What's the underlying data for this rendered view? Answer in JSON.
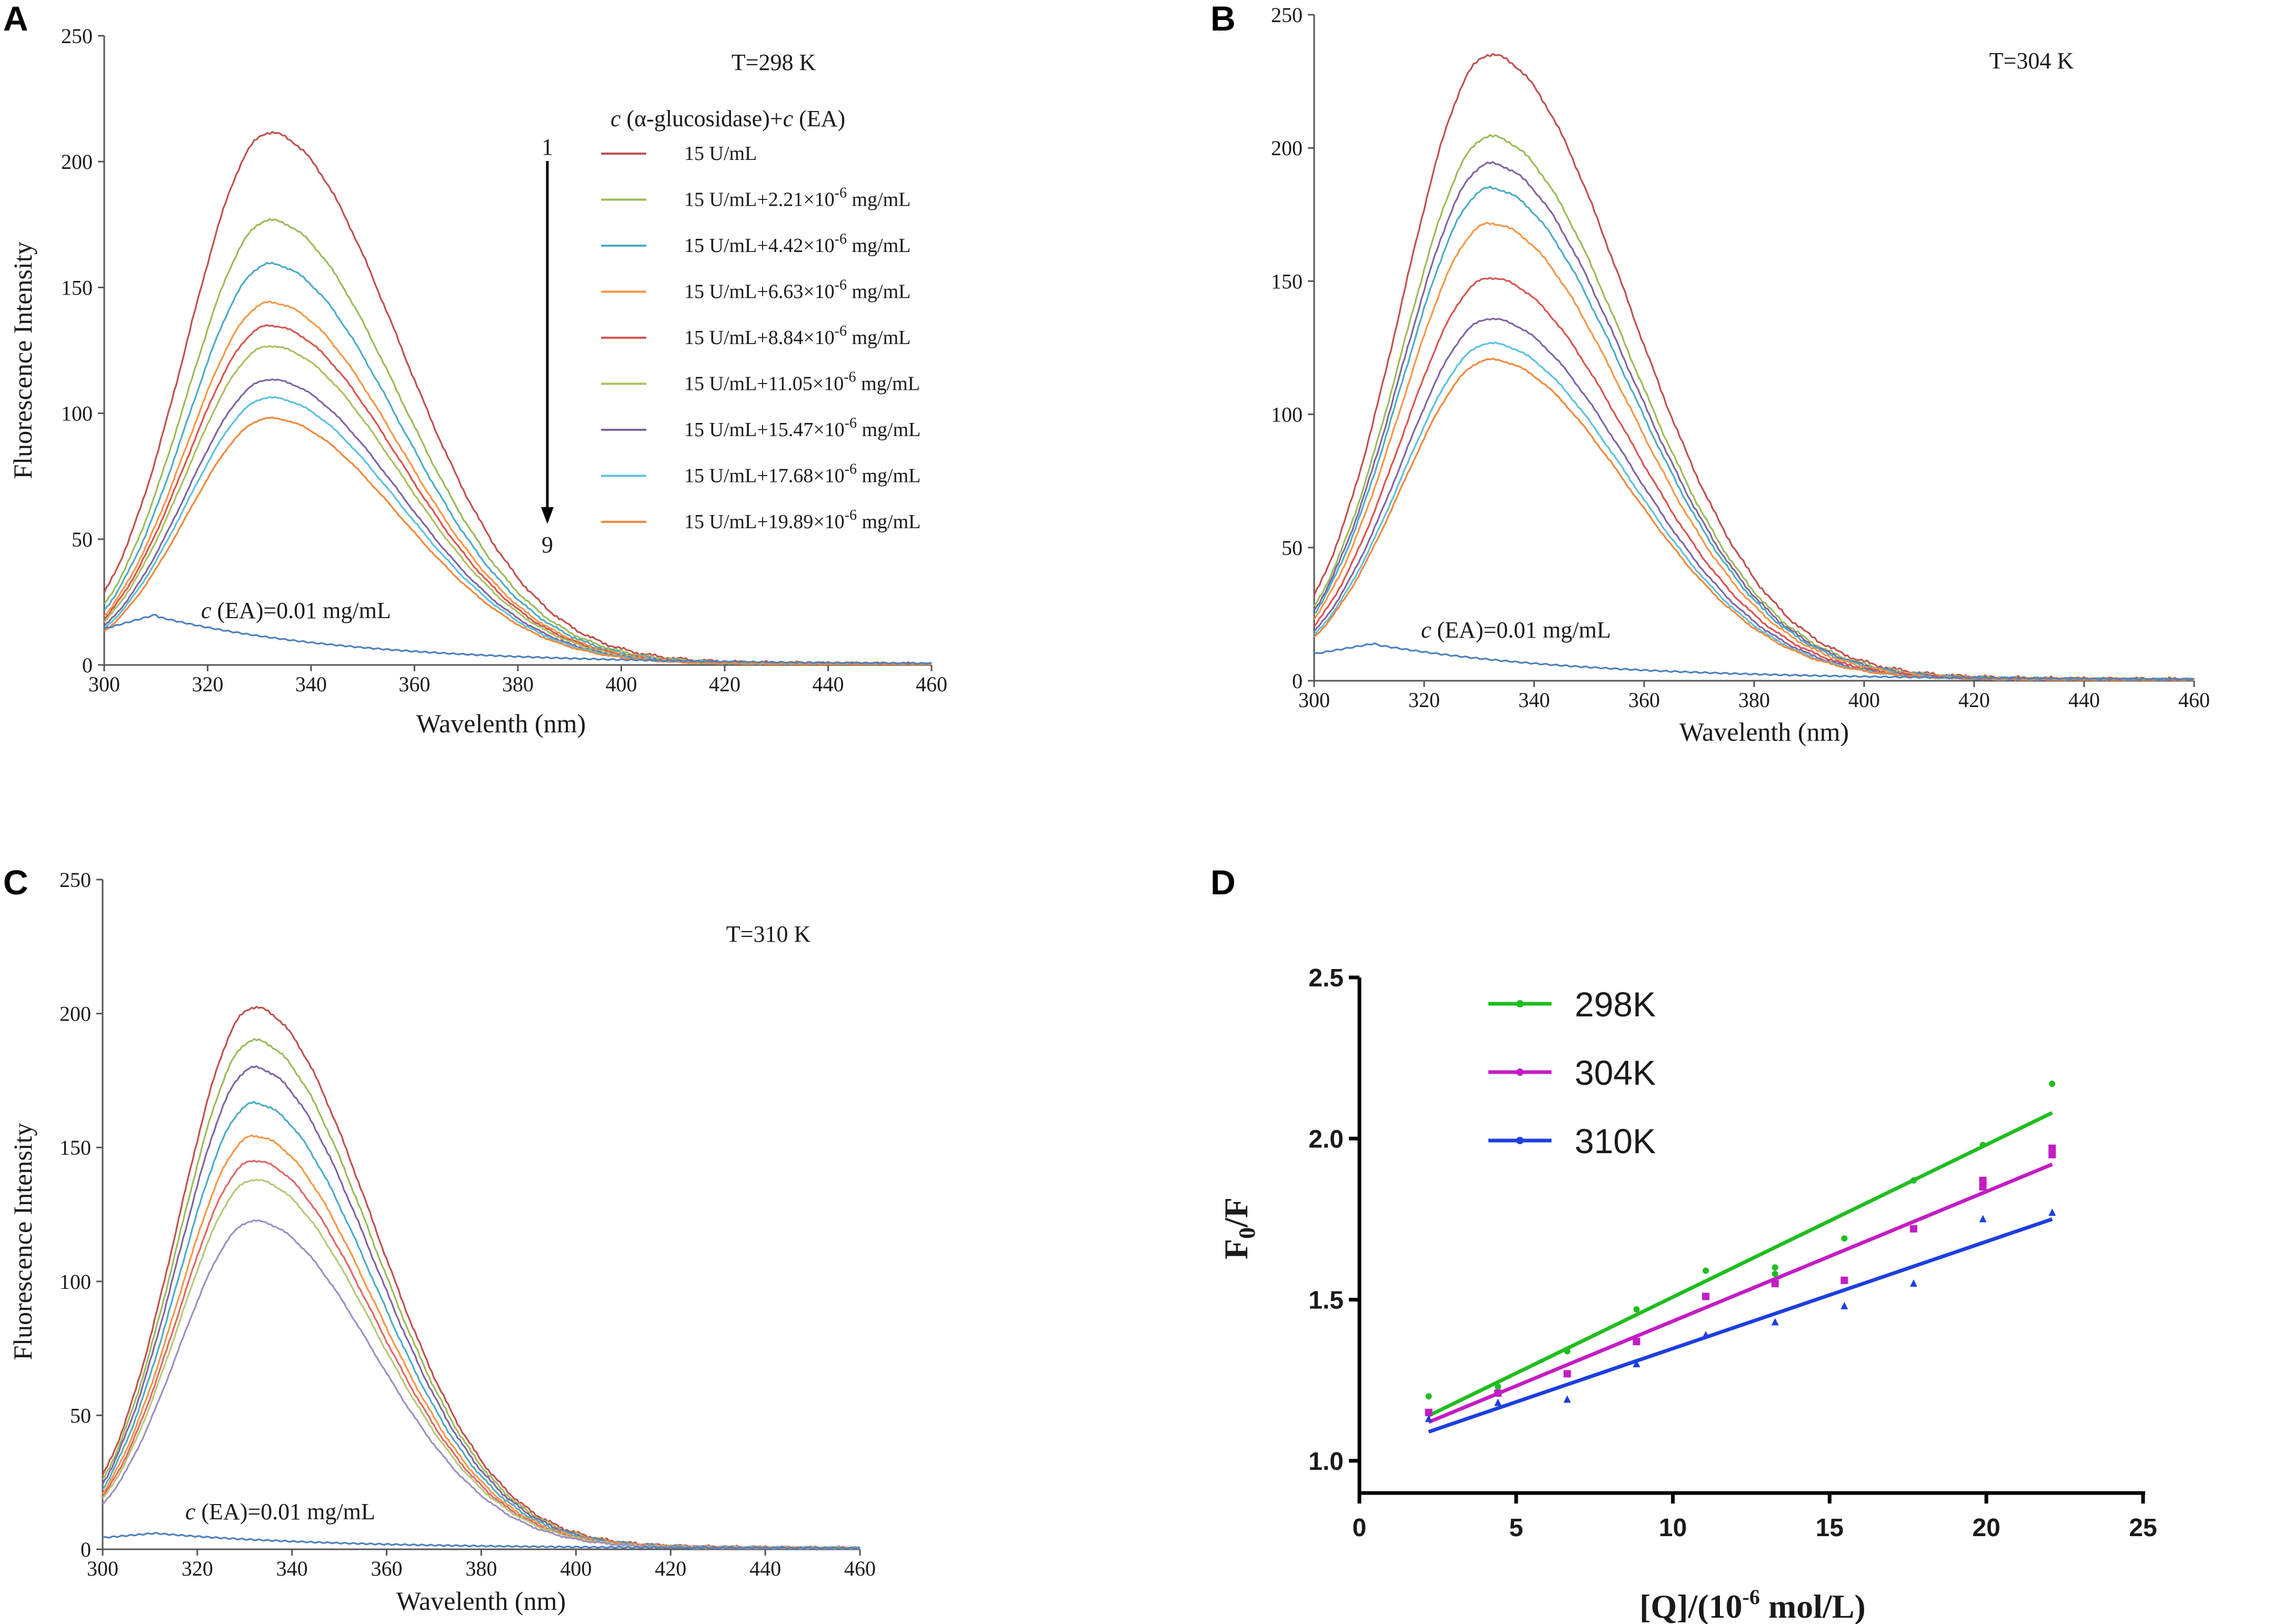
{
  "chart_data": [
    {
      "panel": "A",
      "type": "line",
      "title": "T=298 K",
      "xlabel": "Wavelenth (nm)",
      "ylabel": "Fluorescence Intensity",
      "xlim": [
        300,
        460
      ],
      "ylim": [
        0,
        250
      ],
      "xticks": [
        300,
        320,
        340,
        360,
        380,
        400,
        420,
        440,
        460
      ],
      "yticks": [
        0,
        50,
        100,
        150,
        200,
        250
      ],
      "legend_title_parts": [
        "c",
        " (α-glucosidase)+",
        "c",
        " (EA)"
      ],
      "arrow_start": "1",
      "arrow_end": "9",
      "ea_prefix": "c",
      "ea_text": " (EA)=0.01 mg/mL",
      "series": [
        {
          "name_pre": "15 U/mL",
          "name_sup": "",
          "name_post": "",
          "color": "#c0504d",
          "peak": 207
        },
        {
          "name_pre": "15 U/mL+2.21×10",
          "name_sup": "-6",
          "name_post": " mg/mL",
          "color": "#9bbb59",
          "peak": 173
        },
        {
          "name_pre": "15 U/mL+4.42×10",
          "name_sup": "-6",
          "name_post": " mg/mL",
          "color": "#4bacc6",
          "peak": 156
        },
        {
          "name_pre": "15 U/mL+6.63×10",
          "name_sup": "-6",
          "name_post": " mg/mL",
          "color": "#f79646",
          "peak": 141
        },
        {
          "name_pre": "15 U/mL+8.84×10",
          "name_sup": "-6",
          "name_post": " mg/mL",
          "color": "#d9534f",
          "peak": 132
        },
        {
          "name_pre": "15 U/mL+11.05×10",
          "name_sup": "-6",
          "name_post": " mg/mL",
          "color": "#a8c060",
          "peak": 124
        },
        {
          "name_pre": "15 U/mL+15.47×10",
          "name_sup": "-6",
          "name_post": " mg/mL",
          "color": "#8064a2",
          "peak": 111
        },
        {
          "name_pre": "15 U/mL+17.68×10",
          "name_sup": "-6",
          "name_post": " mg/mL",
          "color": "#5bc0de",
          "peak": 104
        },
        {
          "name_pre": "15 U/mL+19.89×10",
          "name_sup": "-6",
          "name_post": " mg/mL",
          "color": "#f0883a",
          "peak": 96
        }
      ],
      "ea_series": {
        "name": "c (EA)=0.01 mg/mL",
        "color": "#4f81bd",
        "peak": 20,
        "peak_x": 310
      }
    },
    {
      "panel": "B",
      "type": "line",
      "title": "T=304 K",
      "xlabel": "Wavelenth (nm)",
      "ylabel": "",
      "xlim": [
        300,
        460
      ],
      "ylim": [
        0,
        250
      ],
      "xticks": [
        300,
        320,
        340,
        360,
        380,
        400,
        420,
        440,
        460
      ],
      "yticks": [
        0,
        50,
        100,
        150,
        200,
        250
      ],
      "ea_prefix": "c",
      "ea_text": " (EA)=0.01 mg/mL",
      "series": [
        {
          "color": "#c0504d",
          "peak": 230
        },
        {
          "color": "#9bbb59",
          "peak": 200
        },
        {
          "color": "#8064a2",
          "peak": 190
        },
        {
          "color": "#4bacc6",
          "peak": 181
        },
        {
          "color": "#f79646",
          "peak": 168
        },
        {
          "color": "#d9534f",
          "peak": 148
        },
        {
          "color": "#8064a2",
          "peak": 133
        },
        {
          "color": "#5bc0de",
          "peak": 124
        },
        {
          "color": "#f0883a",
          "peak": 118
        }
      ],
      "ea_series": {
        "color": "#4f81bd",
        "peak": 14,
        "peak_x": 311
      }
    },
    {
      "panel": "C",
      "type": "line",
      "title": "T=310 K",
      "xlabel": "Wavelenth (nm)",
      "ylabel": "Fluorescence Intensity",
      "xlim": [
        300,
        460
      ],
      "ylim": [
        0,
        250
      ],
      "xticks": [
        300,
        320,
        340,
        360,
        380,
        400,
        420,
        440,
        460
      ],
      "yticks": [
        0,
        50,
        100,
        150,
        200,
        250
      ],
      "ea_prefix": "c",
      "ea_text": " (EA)=0.01 mg/mL",
      "series": [
        {
          "color": "#c0504d",
          "peak": 198
        },
        {
          "color": "#9bbb59",
          "peak": 186
        },
        {
          "color": "#8064a2",
          "peak": 176
        },
        {
          "color": "#4bacc6",
          "peak": 163
        },
        {
          "color": "#f79646",
          "peak": 151
        },
        {
          "color": "#e06666",
          "peak": 142
        },
        {
          "color": "#b5c97a",
          "peak": 135
        },
        {
          "color": "#9e8fc0",
          "peak": 120
        }
      ],
      "ea_series": {
        "color": "#4f81bd",
        "peak": 6,
        "peak_x": 311
      }
    },
    {
      "panel": "D",
      "type": "scatter",
      "title": "",
      "xlabel_pre": "[Q]/(10",
      "xlabel_sup": "-6",
      "xlabel_post": " mol/L)",
      "ylabel_main": "F",
      "ylabel_sub": "0",
      "ylabel_post": "/F",
      "xlim": [
        0,
        25
      ],
      "ylim": [
        0.9,
        2.5
      ],
      "xticks": [
        0,
        5,
        10,
        15,
        20,
        25
      ],
      "yticks": [
        1.0,
        1.5,
        2.0,
        2.5
      ],
      "legend_position": "top-left",
      "series": [
        {
          "name": "298K",
          "color": "#1fbd1f",
          "marker": "circle",
          "x": [
            2.21,
            4.42,
            6.63,
            8.84,
            11.05,
            13.26,
            13.26,
            15.47,
            17.68,
            19.89,
            22.1
          ],
          "y": [
            1.2,
            1.23,
            1.34,
            1.47,
            1.59,
            1.58,
            1.6,
            1.69,
            1.87,
            1.98,
            2.17
          ],
          "fit": [
            [
              2.21,
              1.14
            ],
            [
              22.1,
              2.08
            ]
          ]
        },
        {
          "name": "304K",
          "color": "#c31dc3",
          "marker": "square",
          "x": [
            2.21,
            4.42,
            6.63,
            8.84,
            11.05,
            13.26,
            15.47,
            17.68,
            19.89,
            19.89,
            22.1,
            22.1
          ],
          "y": [
            1.15,
            1.21,
            1.27,
            1.37,
            1.51,
            1.55,
            1.56,
            1.72,
            1.85,
            1.87,
            1.95,
            1.97
          ],
          "fit": [
            [
              2.21,
              1.12
            ],
            [
              22.1,
              1.92
            ]
          ]
        },
        {
          "name": "310K",
          "color": "#1e3fe0",
          "marker": "triangle",
          "x": [
            2.21,
            4.42,
            6.63,
            8.84,
            11.05,
            13.26,
            15.47,
            17.68,
            19.89,
            22.1
          ],
          "y": [
            1.13,
            1.18,
            1.19,
            1.3,
            1.39,
            1.43,
            1.48,
            1.55,
            1.75,
            1.77
          ],
          "fit": [
            [
              2.21,
              1.09
            ],
            [
              22.1,
              1.75
            ]
          ]
        }
      ]
    }
  ]
}
